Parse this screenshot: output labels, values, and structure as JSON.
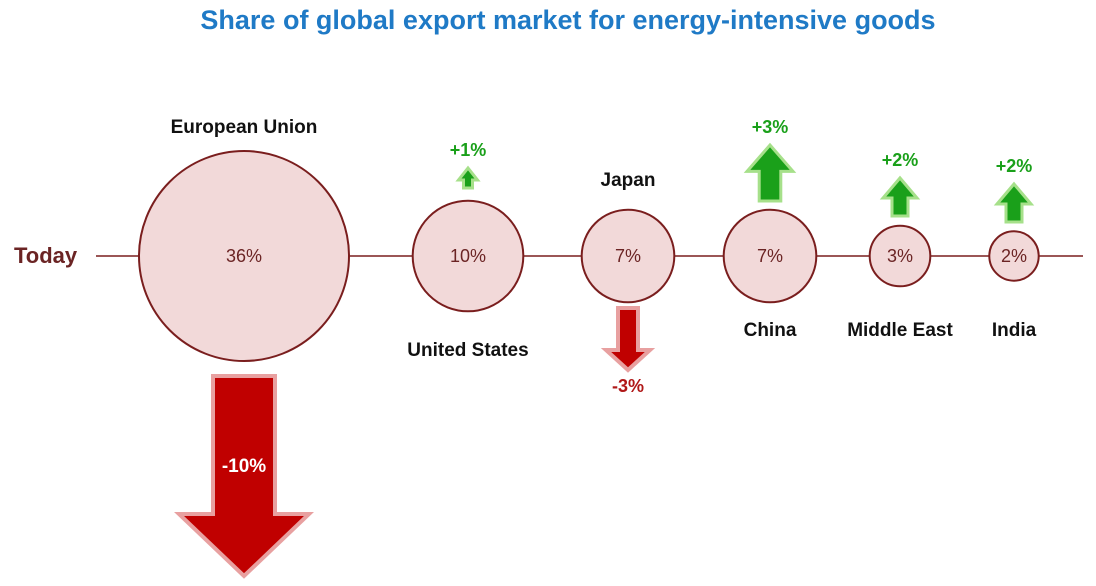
{
  "chart_data": {
    "type": "bubble",
    "title": "Share of global export market for energy-intensive goods",
    "axis_label": "Today",
    "unit": "%",
    "colors": {
      "title": "#1f7ac6",
      "circle_fill": "#f2d9d9",
      "circle_stroke": "#7a1e1e",
      "line": "#7a1e1e",
      "increase": "#1aa01a",
      "decrease": "#c00000"
    },
    "regions": [
      {
        "name": "European Union",
        "share": 36,
        "value_label": "36%",
        "change": -10,
        "change_label": "-10%"
      },
      {
        "name": "United States",
        "share": 10,
        "value_label": "10%",
        "change": 1,
        "change_label": "+1%"
      },
      {
        "name": "Japan",
        "share": 7,
        "value_label": "7%",
        "change": -3,
        "change_label": "-3%"
      },
      {
        "name": "China",
        "share": 7,
        "value_label": "7%",
        "change": 3,
        "change_label": "+3%"
      },
      {
        "name": "Middle East",
        "share": 3,
        "value_label": "3%",
        "change": 2,
        "change_label": "+2%"
      },
      {
        "name": "India",
        "share": 2,
        "value_label": "2%",
        "change": 2,
        "change_label": "+2%"
      }
    ]
  }
}
